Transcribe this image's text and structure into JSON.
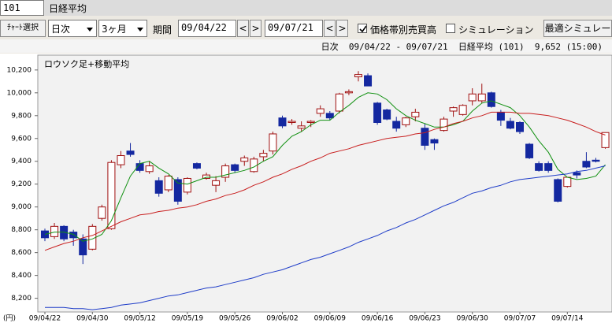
{
  "ui": {
    "code": "101",
    "name": "日経平均",
    "chart_select": "ﾁｬｰﾄ選択",
    "interval": "日次",
    "span": "3ヶ月",
    "period_label": "期間",
    "date_from": "09/04/22",
    "date_to": "09/07/21",
    "prev": "<",
    "next": ">",
    "volume_profile": "価格帯別売買高",
    "simulation": "シミュレーション",
    "optimal": "最適シミュレー",
    "info": "日次  09/04/22 - 09/07/21  日経平均 (101)  9,652 (15:00)"
  },
  "chart_data": {
    "type": "candlestick",
    "title": "ロウソク足+移動平均",
    "unit_label": "(円)",
    "categories": [
      "09/04/22",
      null,
      null,
      null,
      null,
      "09/04/30",
      null,
      null,
      null,
      null,
      "09/05/12",
      null,
      null,
      null,
      null,
      "09/05/19",
      null,
      null,
      null,
      null,
      "09/05/26",
      null,
      null,
      null,
      null,
      "09/06/02",
      null,
      null,
      null,
      null,
      "09/06/09",
      null,
      null,
      null,
      null,
      "09/06/16",
      null,
      null,
      null,
      null,
      "09/06/23",
      null,
      null,
      null,
      null,
      "09/06/30",
      null,
      null,
      null,
      null,
      "09/07/07",
      null,
      null,
      null,
      null,
      "09/07/14",
      null,
      null,
      null,
      null
    ],
    "open": [
      8790,
      8740,
      8830,
      8780,
      8720,
      8630,
      8900,
      8810,
      9370,
      9490,
      9380,
      9310,
      9230,
      9150,
      9240,
      9130,
      9380,
      9250,
      9190,
      9260,
      9370,
      9400,
      9310,
      9440,
      9490,
      9780,
      9740,
      9690,
      9740,
      9820,
      9820,
      9840,
      10000,
      10140,
      10150,
      9910,
      9850,
      9750,
      9720,
      9790,
      9690,
      9590,
      9670,
      9840,
      9810,
      9930,
      9930,
      10000,
      9830,
      9750,
      9740,
      9550,
      9380,
      9380,
      9240,
      9180,
      9300,
      9400,
      9410,
      9520
    ],
    "high": [
      8810,
      8860,
      8840,
      8800,
      8760,
      8850,
      9020,
      9410,
      9490,
      9560,
      9410,
      9400,
      9260,
      9280,
      9260,
      9260,
      9390,
      9300,
      9270,
      9380,
      9380,
      9450,
      9440,
      9500,
      9660,
      9800,
      9770,
      9750,
      9760,
      9890,
      9840,
      10000,
      10030,
      10190,
      10170,
      9920,
      9860,
      9790,
      9790,
      9860,
      9730,
      9600,
      9790,
      9880,
      9900,
      10040,
      10080,
      10010,
      9850,
      9780,
      9750,
      9560,
      9400,
      9400,
      9250,
      9260,
      9320,
      9480,
      9430,
      9650
    ],
    "low": [
      8700,
      8720,
      8700,
      8660,
      8500,
      8620,
      8880,
      8800,
      9340,
      9440,
      9300,
      9290,
      9090,
      9130,
      9020,
      9110,
      9330,
      9240,
      9130,
      9220,
      9300,
      9360,
      9300,
      9400,
      9460,
      9690,
      9720,
      9660,
      9700,
      9790,
      9760,
      9820,
      9980,
      10100,
      10060,
      9720,
      9760,
      9660,
      9700,
      9750,
      9500,
      9500,
      9660,
      9790,
      9800,
      9890,
      9910,
      9870,
      9710,
      9680,
      9640,
      9420,
      9310,
      9300,
      9040,
      9170,
      9250,
      9340,
      9390,
      9510
    ],
    "close": [
      8730,
      8830,
      8720,
      8730,
      8580,
      8830,
      9000,
      9390,
      9450,
      9460,
      9320,
      9360,
      9120,
      9270,
      9050,
      9250,
      9340,
      9280,
      9230,
      9360,
      9320,
      9430,
      9420,
      9470,
      9640,
      9710,
      9750,
      9710,
      9750,
      9860,
      9780,
      9990,
      10010,
      10160,
      10060,
      9740,
      9770,
      9690,
      9780,
      9830,
      9540,
      9560,
      9770,
      9870,
      9890,
      9990,
      9990,
      9880,
      9760,
      9690,
      9660,
      9430,
      9320,
      9320,
      9050,
      9260,
      9280,
      9350,
      9400,
      9652
    ],
    "up_color": "#a01010",
    "down_color": "#1428a0",
    "lines": [
      {
        "color": "#109010",
        "values": [
          8760,
          8780,
          8780,
          8760,
          8700,
          8720,
          8760,
          8880,
          9080,
          9270,
          9380,
          9400,
          9340,
          9290,
          9210,
          9200,
          9230,
          9260,
          9260,
          9280,
          9300,
          9320,
          9350,
          9400,
          9440,
          9540,
          9620,
          9660,
          9720,
          9760,
          9760,
          9830,
          9890,
          9960,
          10000,
          9990,
          9940,
          9860,
          9800,
          9760,
          9730,
          9700,
          9700,
          9720,
          9750,
          9840,
          9910,
          9930,
          9900,
          9870,
          9800,
          9700,
          9580,
          9480,
          9330,
          9260,
          9240,
          9250,
          9270,
          9370
        ]
      },
      {
        "color": "#c81e1e",
        "values": [
          8620,
          8650,
          8680,
          8700,
          8730,
          8750,
          8790,
          8830,
          8870,
          8900,
          8930,
          8940,
          8960,
          8970,
          8990,
          9000,
          9020,
          9050,
          9070,
          9100,
          9120,
          9150,
          9190,
          9220,
          9260,
          9290,
          9330,
          9360,
          9400,
          9430,
          9470,
          9490,
          9510,
          9540,
          9560,
          9580,
          9600,
          9610,
          9620,
          9640,
          9650,
          9680,
          9700,
          9730,
          9750,
          9780,
          9800,
          9830,
          9830,
          9830,
          9820,
          9820,
          9810,
          9800,
          9780,
          9760,
          9730,
          9700,
          9660,
          9630
        ]
      },
      {
        "color": "#1e3cc8",
        "values": [
          8120,
          8120,
          8120,
          8110,
          8110,
          8100,
          8110,
          8120,
          8140,
          8150,
          8160,
          8180,
          8200,
          8220,
          8230,
          8250,
          8270,
          8290,
          8300,
          8320,
          8340,
          8360,
          8380,
          8410,
          8430,
          8450,
          8480,
          8510,
          8540,
          8560,
          8590,
          8620,
          8650,
          8690,
          8720,
          8750,
          8790,
          8820,
          8860,
          8890,
          8930,
          8970,
          9010,
          9040,
          9080,
          9120,
          9140,
          9170,
          9190,
          9220,
          9240,
          9250,
          9260,
          9270,
          9280,
          9290,
          9310,
          9320,
          9340,
          9360
        ]
      }
    ],
    "ylim": [
      8080,
      10330
    ],
    "yticks": [
      {
        "value": 8200,
        "label": "8,200"
      },
      {
        "value": 8400,
        "label": "8,400"
      },
      {
        "value": 8600,
        "label": "8,600"
      },
      {
        "value": 8800,
        "label": "8,800"
      },
      {
        "value": 9000,
        "label": "9,000"
      },
      {
        "value": 9200,
        "label": "9,200"
      },
      {
        "value": 9400,
        "label": "9,400"
      },
      {
        "value": 9600,
        "label": "9,600"
      },
      {
        "value": 9800,
        "label": "9,800"
      },
      {
        "value": 10000,
        "label": "10,000"
      },
      {
        "value": 10200,
        "label": "10,200"
      }
    ]
  }
}
